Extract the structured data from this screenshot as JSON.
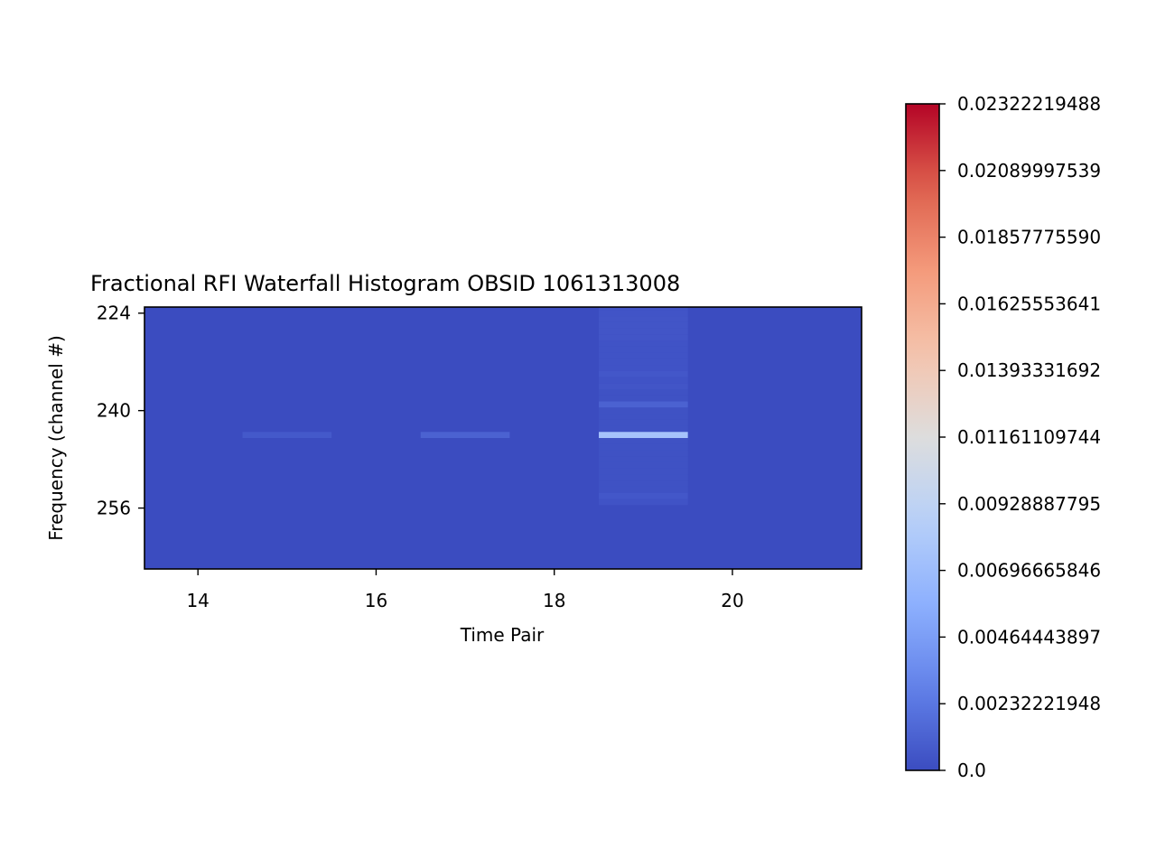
{
  "chart_data": {
    "type": "heatmap",
    "title": "Fractional RFI Waterfall Histogram OBSID 1061313008",
    "xlabel": "Time Pair",
    "ylabel": "Frequency (channel #)",
    "x_ticks": [
      14,
      16,
      18,
      20
    ],
    "y_ticks": [
      224,
      240,
      256
    ],
    "xlim": [
      13.4,
      21.45
    ],
    "ylim": [
      266,
      223
    ],
    "column_range": [
      13.5,
      21.5
    ],
    "row_range": [
      222,
      266
    ],
    "colormap": "coolwarm",
    "colorbar": {
      "min": 0.0,
      "max": 0.02322219488,
      "ticks": [
        "0.0",
        "0.00232221948",
        "0.00464443897",
        "0.00696665846",
        "0.00928887795",
        "0.01161109744",
        "0.01393331692",
        "0.01625553641",
        "0.01857775590",
        "0.02089997539",
        "0.02322219488"
      ]
    },
    "cells": [
      {
        "x": 15,
        "channel": 244,
        "value": 0.0007
      },
      {
        "x": 17,
        "channel": 244,
        "value": 0.0012
      },
      {
        "x": 19,
        "channel": 223,
        "value": 0.00045
      },
      {
        "x": 19,
        "channel": 224,
        "value": 0.00045
      },
      {
        "x": 19,
        "channel": 225,
        "value": 0.0005
      },
      {
        "x": 19,
        "channel": 226,
        "value": 0.0005
      },
      {
        "x": 19,
        "channel": 227,
        "value": 0.0005
      },
      {
        "x": 19,
        "channel": 228,
        "value": 0.0005
      },
      {
        "x": 19,
        "channel": 229,
        "value": 0.0004
      },
      {
        "x": 19,
        "channel": 230,
        "value": 0.0004
      },
      {
        "x": 19,
        "channel": 231,
        "value": 0.0004
      },
      {
        "x": 19,
        "channel": 232,
        "value": 0.0004
      },
      {
        "x": 19,
        "channel": 233,
        "value": 0.0004
      },
      {
        "x": 19,
        "channel": 234,
        "value": 0.0006
      },
      {
        "x": 19,
        "channel": 235,
        "value": 0.0004
      },
      {
        "x": 19,
        "channel": 236,
        "value": 0.0005
      },
      {
        "x": 19,
        "channel": 237,
        "value": 0.0003
      },
      {
        "x": 19,
        "channel": 238,
        "value": 0.0003
      },
      {
        "x": 19,
        "channel": 239,
        "value": 0.0012
      },
      {
        "x": 19,
        "channel": 240,
        "value": 0.0003
      },
      {
        "x": 19,
        "channel": 241,
        "value": 0.0003
      },
      {
        "x": 19,
        "channel": 242,
        "value": 0.0003
      },
      {
        "x": 19,
        "channel": 243,
        "value": 0.0003
      },
      {
        "x": 19,
        "channel": 244,
        "value": 0.0075
      },
      {
        "x": 19,
        "channel": 245,
        "value": 0.0003
      },
      {
        "x": 19,
        "channel": 246,
        "value": 0.0003
      },
      {
        "x": 19,
        "channel": 247,
        "value": 0.0003
      },
      {
        "x": 19,
        "channel": 248,
        "value": 0.0003
      },
      {
        "x": 19,
        "channel": 249,
        "value": 0.0003
      },
      {
        "x": 19,
        "channel": 250,
        "value": 0.0003
      },
      {
        "x": 19,
        "channel": 251,
        "value": 0.0003
      },
      {
        "x": 19,
        "channel": 252,
        "value": 0.0003
      },
      {
        "x": 19,
        "channel": 253,
        "value": 0.0003
      },
      {
        "x": 19,
        "channel": 254,
        "value": 0.0006
      },
      {
        "x": 19,
        "channel": 255,
        "value": 0.0004
      }
    ]
  }
}
